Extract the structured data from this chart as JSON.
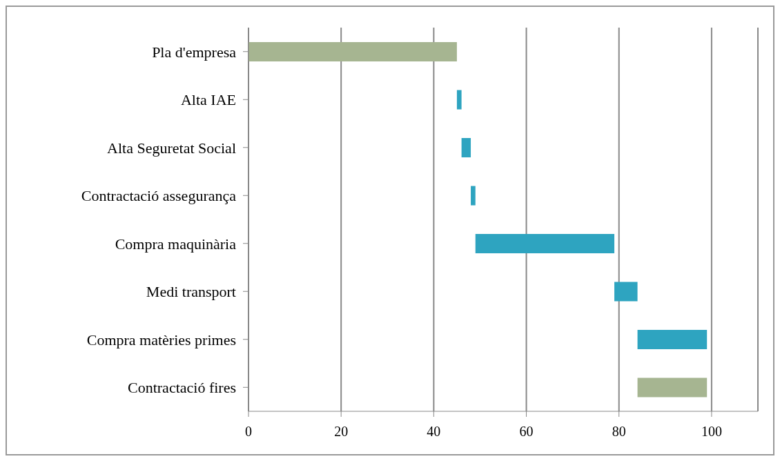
{
  "chart_data": {
    "type": "bar",
    "orientation": "horizontal",
    "categories": [
      "Pla d'empresa",
      "Alta IAE",
      "Alta Seguretat Social",
      "Contractació assegurança",
      "Compra maquinària",
      "Medi transport",
      "Compra matèries primes",
      "Contractació fires"
    ],
    "base": [
      0,
      45,
      46,
      48,
      49,
      79,
      84,
      84
    ],
    "values": [
      45,
      1,
      2,
      1,
      30,
      5,
      15,
      15
    ],
    "colors": [
      "#a6b591",
      "#2ea4c0",
      "#2ea4c0",
      "#2ea4c0",
      "#2ea4c0",
      "#2ea4c0",
      "#2ea4c0",
      "#a6b591"
    ],
    "xlim": [
      0,
      110
    ],
    "xticks": [
      0,
      20,
      40,
      60,
      80,
      100
    ],
    "grid": "x"
  }
}
